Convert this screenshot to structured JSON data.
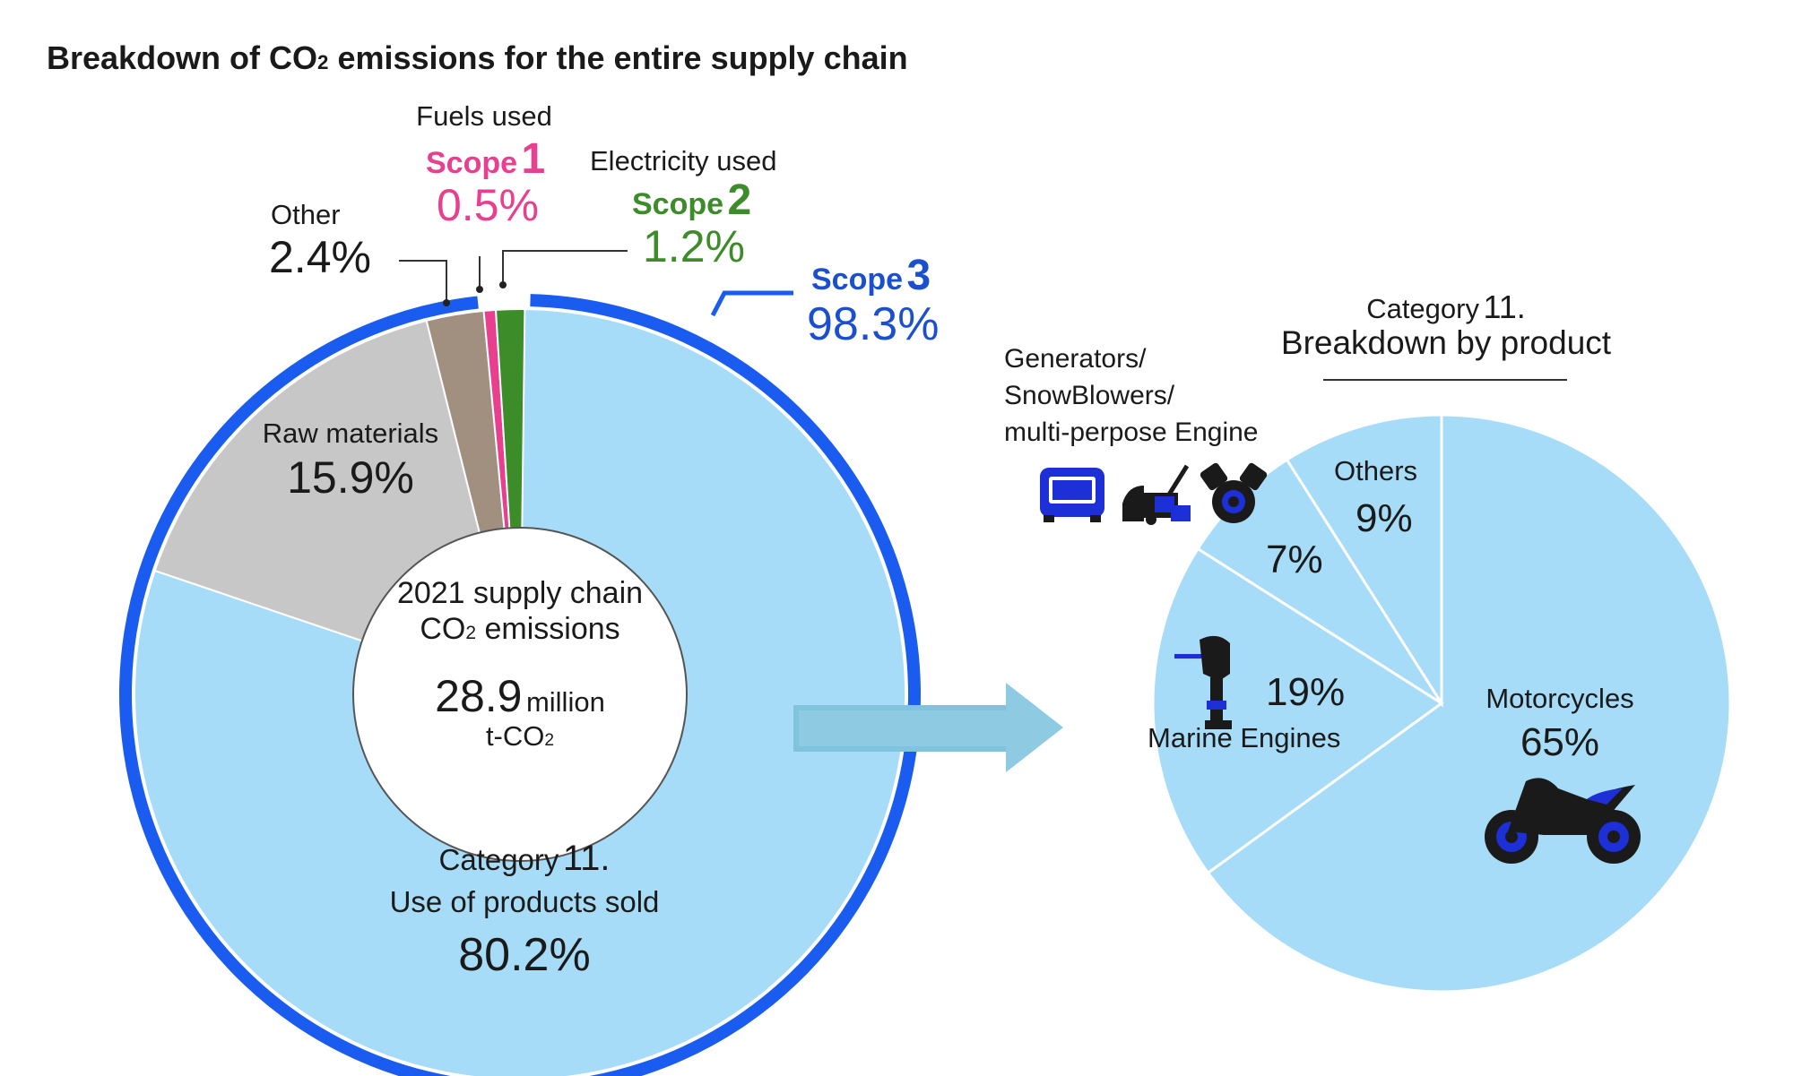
{
  "title": {
    "main": "Breakdown of CO",
    "sub": "2",
    "rest": " emissions for the entire supply chain"
  },
  "chart_data": [
    {
      "type": "pie",
      "title": "Breakdown of CO2 emissions for the entire supply chain",
      "center": {
        "line1": "2021 supply chain",
        "line2_main": "CO",
        "line2_sub": "2",
        "line2_rest": " emissions",
        "value": "28.9",
        "unit": "million",
        "unit2_main": "t-CO",
        "unit2_sub": "2"
      },
      "slices": [
        {
          "name": "Category 11. Use of products sold",
          "value": 80.2,
          "color": "#a6dcf7"
        },
        {
          "name": "Raw materials",
          "value": 15.9,
          "color": "#c7c7c7"
        },
        {
          "name": "Other",
          "value": 2.4,
          "color": "#a18f80"
        },
        {
          "name": "Scope 1",
          "value": 0.5,
          "color": "#e8408f"
        },
        {
          "name": "Scope 2",
          "value": 1.2,
          "color": "#3c8c2a"
        }
      ],
      "scope3_ring": {
        "value": 98.3,
        "color": "#1a5cf0"
      }
    },
    {
      "type": "pie",
      "title": "Category 11. Breakdown by product",
      "slices": [
        {
          "name": "Motorcycles",
          "value": 65
        },
        {
          "name": "Marine Engines",
          "value": 19
        },
        {
          "name": "Generators/ SnowBlowers/ multi-perpose Engine",
          "value": 7
        },
        {
          "name": "Others",
          "value": 9
        }
      ],
      "color": "#a6dcf7"
    }
  ],
  "labels": {
    "fuels_used": "Fuels used",
    "scope1_word": "Scope",
    "scope1_num": "1",
    "scope1_pct": "0.5%",
    "electricity_used": "Electricity used",
    "scope2_word": "Scope",
    "scope2_num": "2",
    "scope2_pct": "1.2%",
    "scope3_word": "Scope",
    "scope3_num": "3",
    "scope3_pct": "98.3%",
    "other": "Other",
    "other_pct": "2.4%",
    "raw_materials": "Raw materials",
    "raw_pct": "15.9%",
    "cat11_word": "Category",
    "cat11_num": "11.",
    "use_of_products": "Use of products sold",
    "use_pct": "80.2%"
  },
  "right": {
    "cat_word": "Category",
    "cat_num": "11.",
    "heading": "Breakdown by product",
    "gen_line1": "Generators/",
    "gen_line2": "SnowBlowers/",
    "gen_line3": "multi-perpose Engine",
    "gen_pct": "7%",
    "others": "Others",
    "others_pct": "9%",
    "marine": "Marine Engines",
    "marine_pct": "19%",
    "moto": "Motorcycles",
    "moto_pct": "65%"
  },
  "colors": {
    "scope1": "#e8408f",
    "scope2": "#3c8c2a",
    "scope3": "#1a4fd0",
    "icon": "#1d2fd6",
    "arrow": "#7fc3dc"
  },
  "icons": [
    "generator-icon",
    "snowblower-icon",
    "engine-icon",
    "outboard-motor-icon",
    "motorcycle-icon"
  ]
}
